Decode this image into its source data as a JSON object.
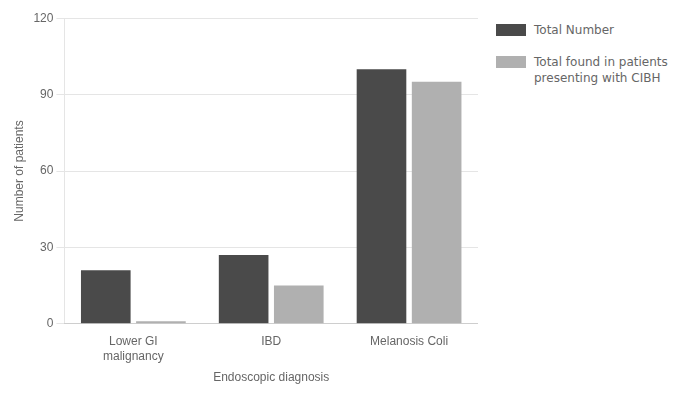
{
  "chart_data": {
    "type": "bar",
    "xlabel": "Endoscopic diagnosis",
    "ylabel": "Number of patients",
    "categories": [
      "Lower GI\nmalignancy",
      "IBD",
      "Melanosis Coli"
    ],
    "series": [
      {
        "name": "Total Number",
        "color": "#4a4a4a",
        "values": [
          21,
          27,
          100
        ]
      },
      {
        "name": "Total found in patients\npresenting with CIBH",
        "color": "#b0b0b0",
        "values": [
          1,
          15,
          95
        ]
      }
    ],
    "ylim": [
      0,
      120
    ],
    "yticks": [
      0,
      30,
      60,
      90,
      120
    ],
    "grid": true,
    "legend": "right"
  }
}
